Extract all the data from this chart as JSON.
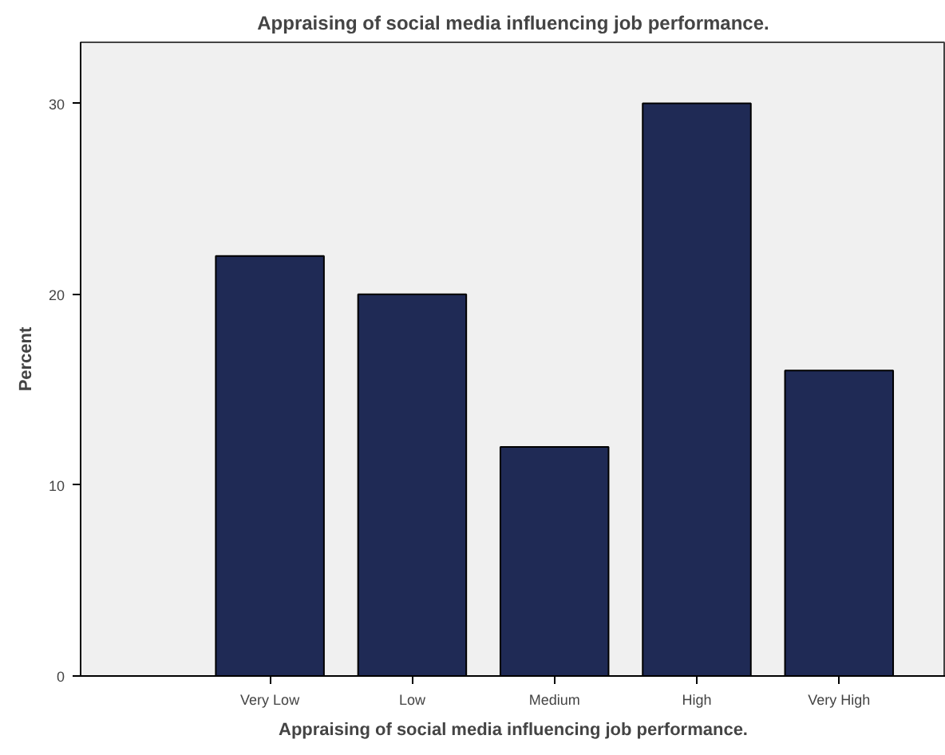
{
  "chart_data": {
    "type": "bar",
    "title": "Appraising of social media influencing job performance.",
    "xlabel": "Appraising of social media influencing job performance.",
    "ylabel": "Percent",
    "categories": [
      "Very Low",
      "Low",
      "Medium",
      "High",
      "Very High"
    ],
    "values": [
      22,
      20,
      12,
      30,
      16
    ],
    "color": "#1f2a55",
    "ylim": [
      0,
      33.2
    ],
    "yticks": [
      0,
      10,
      20,
      30
    ],
    "grid": false
  }
}
